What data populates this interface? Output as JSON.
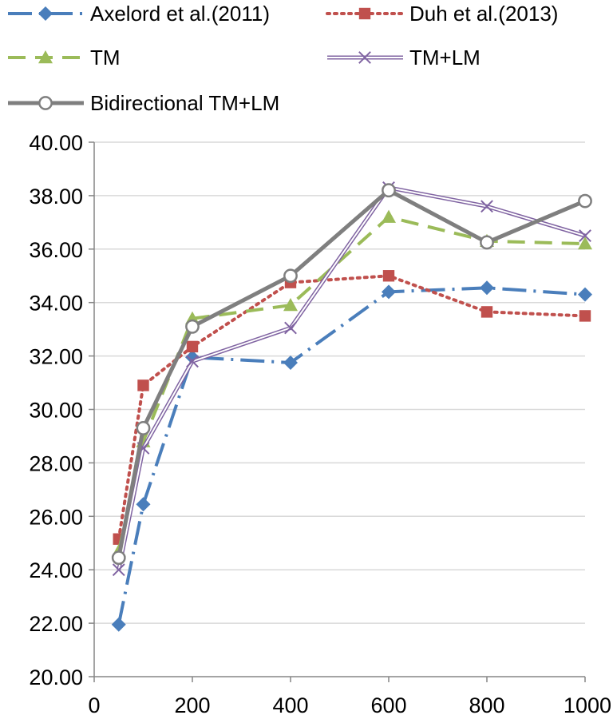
{
  "chart_data": {
    "type": "line",
    "x": [
      50,
      100,
      200,
      400,
      600,
      800,
      1000
    ],
    "xticks": [
      "0",
      "200",
      "400",
      "600",
      "800",
      "1000"
    ],
    "xtick_values": [
      0,
      200,
      400,
      600,
      800,
      1000
    ],
    "xlim": [
      0,
      1000
    ],
    "ylim": [
      20,
      40
    ],
    "yticks": [
      "20.00",
      "22.00",
      "24.00",
      "26.00",
      "28.00",
      "30.00",
      "32.00",
      "34.00",
      "36.00",
      "38.00",
      "40.00"
    ],
    "ytick_values": [
      20,
      22,
      24,
      26,
      28,
      30,
      32,
      34,
      36,
      38,
      40
    ],
    "grid": "horizontal",
    "legend_position": "top",
    "series": [
      {
        "name": "Axelord et al.(2011)",
        "color": "#4A7EBB",
        "line_style": "dash-dot",
        "marker": "diamond",
        "values": [
          21.95,
          26.45,
          31.95,
          31.75,
          34.4,
          34.55,
          34.3
        ]
      },
      {
        "name": "Duh et al.(2013)",
        "color": "#C0504D",
        "line_style": "dotted",
        "marker": "square",
        "values": [
          25.15,
          30.9,
          32.35,
          34.75,
          35.0,
          33.65,
          33.5
        ]
      },
      {
        "name": "TM",
        "color": "#9BBB59",
        "line_style": "dashed",
        "marker": "triangle",
        "values": [
          24.7,
          28.8,
          33.4,
          33.9,
          37.2,
          36.3,
          36.2
        ]
      },
      {
        "name": "TM+LM",
        "color": "#8064A2",
        "line_style": "double",
        "marker": "x",
        "values": [
          24.0,
          28.55,
          31.8,
          33.05,
          38.3,
          37.6,
          36.5
        ]
      },
      {
        "name": "Bidirectional TM+LM",
        "color": "#7F7F7F",
        "line_style": "solid",
        "marker": "circle",
        "values": [
          24.45,
          29.3,
          33.1,
          35.0,
          38.2,
          36.25,
          37.8
        ]
      }
    ]
  }
}
